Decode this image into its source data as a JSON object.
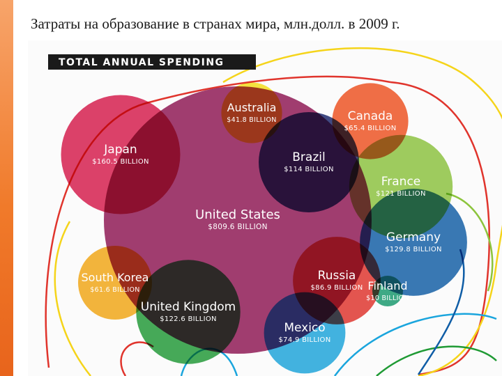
{
  "slide": {
    "title": "Затраты на образование в странах мира, млн.долл. в 2009 г."
  },
  "chart_data": {
    "type": "bubble",
    "title": "TOTAL ANNUAL SPENDING",
    "unit": "BILLION",
    "series": [
      {
        "name": "United States",
        "value": 809.6,
        "label": "$809.6 BILLION",
        "color": "#8f1452"
      },
      {
        "name": "Japan",
        "value": 160.5,
        "label": "$160.5 BILLION",
        "color": "#d8194a"
      },
      {
        "name": "Germany",
        "value": 129.8,
        "label": "$129.8 BILLION",
        "color": "#0f5da6"
      },
      {
        "name": "United Kingdom",
        "value": 122.6,
        "label": "$122.6 BILLION",
        "color": "#1f9a34"
      },
      {
        "name": "France",
        "value": 121,
        "label": "$121 BILLION",
        "color": "#8cc43c"
      },
      {
        "name": "Brazil",
        "value": 114,
        "label": "$114 BILLION",
        "color": "#17236a"
      },
      {
        "name": "Russia",
        "value": 86.9,
        "label": "$86.9 BILLION",
        "color": "#e23129"
      },
      {
        "name": "Mexico",
        "value": 74.9,
        "label": "$74.9 BILLION",
        "color": "#1aa5dd"
      },
      {
        "name": "Canada",
        "value": 65.4,
        "label": "$65.4 BILLION",
        "color": "#f0501f"
      },
      {
        "name": "South Korea",
        "value": 61.6,
        "label": "$61.6 BILLION",
        "color": "#f4a712"
      },
      {
        "name": "Australia",
        "value": 41.8,
        "label": "$41.8 BILLION",
        "color": "#f7e016"
      },
      {
        "name": "Finland",
        "value": 10,
        "label": "$10 BILLION",
        "color": "#159a6c"
      }
    ]
  }
}
